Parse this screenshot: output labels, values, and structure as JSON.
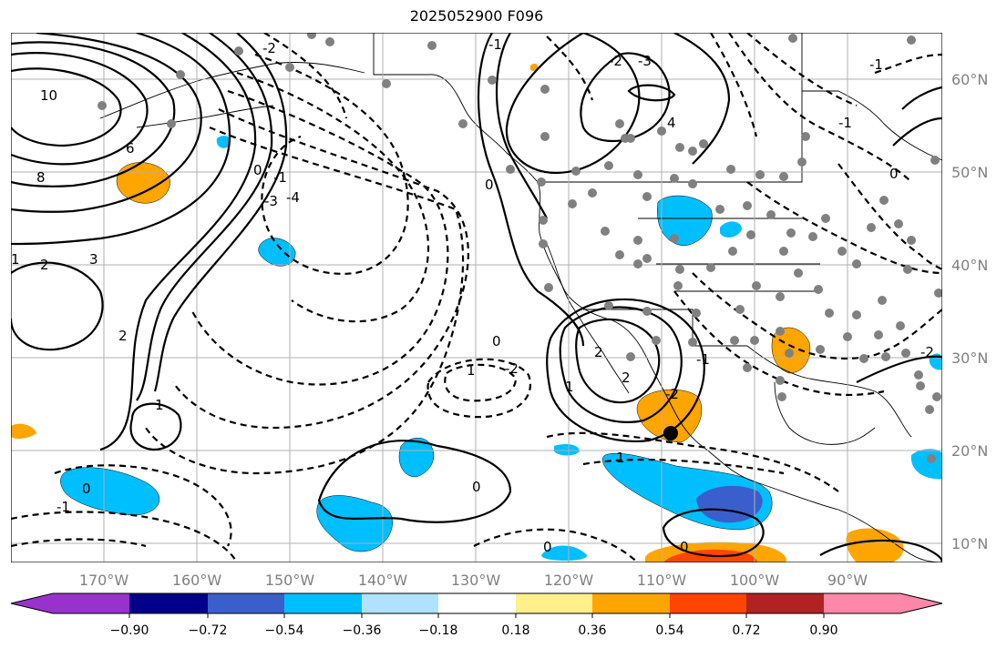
{
  "title": "2025052900 F096",
  "map": {
    "lon_ticks": [
      "170°W",
      "160°W",
      "150°W",
      "140°W",
      "130°W",
      "120°W",
      "110°W",
      "100°W",
      "90°W"
    ],
    "lat_ticks": [
      "60°N",
      "50°N",
      "40°N",
      "30°N",
      "20°N",
      "10°N"
    ],
    "contour_labels": [
      "10",
      "8",
      "6",
      "3",
      "2",
      "2",
      "1",
      "0",
      "-1",
      "-3",
      "-4",
      "0",
      "-2",
      "-1",
      "-2",
      "1",
      "0",
      "0",
      "-1",
      "1",
      "0",
      "-3",
      "-2",
      "4",
      "2",
      "0",
      "-1",
      "2",
      "-2",
      "1",
      "-2",
      "-1",
      "0",
      "0",
      "1",
      "-1"
    ]
  },
  "colorbar": {
    "tick_labels": [
      "−0.90",
      "−0.72",
      "−0.54",
      "−0.36",
      "−0.18",
      "0.18",
      "0.36",
      "0.54",
      "0.72",
      "0.90"
    ],
    "colors": [
      "#9932cc",
      "#00008b",
      "#3a5fcd",
      "#00bfff",
      "#b0e2ff",
      "#ffffff",
      "#fff08a",
      "#ffa500",
      "#ff4500",
      "#b22222",
      "#ff88aa"
    ]
  }
}
